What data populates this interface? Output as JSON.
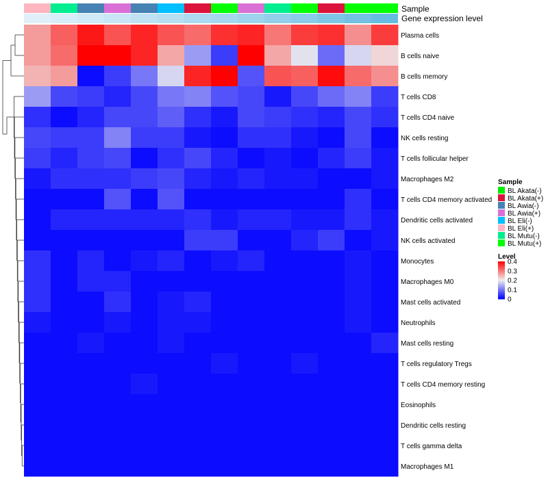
{
  "chart_data": {
    "type": "heatmap",
    "annotation_labels": {
      "sample": "Sample",
      "level_bar": "Gene expression level"
    },
    "rows": [
      "Plasma cells",
      "B cells naive",
      "B cells memory",
      "T cells CD8",
      "T cells CD4 naive",
      "NK cells resting",
      "T cells follicular helper",
      "Macrophages M2",
      "T cells CD4 memory activated",
      "Dendritic cells activated",
      "NK cells activated",
      "Monocytes",
      "Macrophages M0",
      "Mast cells activated",
      "Neutrophils",
      "Mast cells resting",
      "T cells regulatory  Tregs",
      "T cells CD4 memory resting",
      "Eosinophils",
      "Dendritic cells resting",
      "T cells gamma delta",
      "Macrophages M1"
    ],
    "columns": [
      "BL Eli(+)",
      "BL Mutu(-)",
      "BL Awia(-)",
      "BL Awia(+)",
      "BL Awia(-)",
      "BL Eli(-)",
      "BL Akata(+)",
      "BL Mutu(+)",
      "BL Awia(+)",
      "BL Mutu(-)",
      "BL Mutu(+)",
      "BL Akata(+)",
      "BL Mutu(+)",
      "BL Mutu(+)"
    ],
    "values": [
      [
        0.27,
        0.32,
        0.38,
        0.33,
        0.37,
        0.33,
        0.31,
        0.36,
        0.37,
        0.3,
        0.35,
        0.36,
        0.28,
        0.35
      ],
      [
        0.27,
        0.31,
        0.4,
        0.4,
        0.37,
        0.26,
        0.13,
        0.05,
        0.4,
        0.26,
        0.19,
        0.09,
        0.18,
        0.22
      ],
      [
        0.25,
        0.27,
        0.01,
        0.05,
        0.1,
        0.18,
        0.37,
        0.4,
        0.07,
        0.33,
        0.32,
        0.39,
        0.31,
        0.28
      ],
      [
        0.13,
        0.06,
        0.05,
        0.03,
        0.06,
        0.1,
        0.11,
        0.07,
        0.06,
        0.02,
        0.06,
        0.09,
        0.11,
        0.05
      ],
      [
        0.04,
        0.01,
        0.03,
        0.06,
        0.06,
        0.08,
        0.04,
        0.02,
        0.06,
        0.05,
        0.04,
        0.03,
        0.06,
        0.04
      ],
      [
        0.06,
        0.05,
        0.05,
        0.11,
        0.05,
        0.05,
        0.02,
        0.01,
        0.04,
        0.04,
        0.02,
        0.01,
        0.06,
        0.01
      ],
      [
        0.05,
        0.03,
        0.05,
        0.06,
        0.01,
        0.04,
        0.06,
        0.03,
        0.01,
        0.02,
        0.01,
        0.03,
        0.05,
        0.02
      ],
      [
        0.02,
        0.04,
        0.04,
        0.04,
        0.05,
        0.06,
        0.03,
        0.02,
        0.03,
        0.02,
        0.02,
        0.01,
        0.01,
        0.02
      ],
      [
        0.01,
        0.01,
        0.01,
        0.07,
        0.01,
        0.07,
        0.01,
        0.01,
        0.01,
        0.01,
        0.01,
        0.01,
        0.04,
        0.01
      ],
      [
        0.01,
        0.03,
        0.03,
        0.03,
        0.03,
        0.03,
        0.04,
        0.02,
        0.03,
        0.03,
        0.02,
        0.02,
        0.04,
        0.02
      ],
      [
        0.01,
        0.01,
        0.01,
        0.01,
        0.01,
        0.01,
        0.05,
        0.05,
        0.01,
        0.01,
        0.03,
        0.05,
        0.01,
        0.02
      ],
      [
        0.04,
        0.01,
        0.03,
        0.01,
        0.02,
        0.03,
        0.01,
        0.02,
        0.03,
        0.01,
        0.01,
        0.01,
        0.02,
        0.01
      ],
      [
        0.04,
        0.01,
        0.03,
        0.03,
        0.01,
        0.01,
        0.01,
        0.01,
        0.01,
        0.01,
        0.01,
        0.01,
        0.02,
        0.01
      ],
      [
        0.04,
        0.01,
        0.01,
        0.04,
        0.01,
        0.02,
        0.03,
        0.01,
        0.01,
        0.01,
        0.01,
        0.01,
        0.02,
        0.01
      ],
      [
        0.02,
        0.01,
        0.01,
        0.02,
        0.01,
        0.02,
        0.02,
        0.01,
        0.01,
        0.01,
        0.01,
        0.01,
        0.02,
        0.01
      ],
      [
        0.01,
        0.01,
        0.02,
        0.01,
        0.01,
        0.02,
        0.01,
        0.01,
        0.01,
        0.01,
        0.01,
        0.01,
        0.01,
        0.03
      ],
      [
        0.01,
        0.01,
        0.01,
        0.01,
        0.01,
        0.01,
        0.01,
        0.02,
        0.01,
        0.01,
        0.02,
        0.01,
        0.01,
        0.01
      ],
      [
        0.01,
        0.01,
        0.01,
        0.01,
        0.02,
        0.01,
        0.01,
        0.01,
        0.01,
        0.01,
        0.01,
        0.01,
        0.01,
        0.01
      ],
      [
        0.01,
        0.01,
        0.01,
        0.01,
        0.01,
        0.01,
        0.01,
        0.01,
        0.01,
        0.01,
        0.01,
        0.01,
        0.01,
        0.01
      ],
      [
        0.01,
        0.01,
        0.01,
        0.01,
        0.01,
        0.01,
        0.01,
        0.01,
        0.01,
        0.01,
        0.01,
        0.01,
        0.01,
        0.01
      ],
      [
        0.01,
        0.01,
        0.01,
        0.01,
        0.01,
        0.01,
        0.01,
        0.01,
        0.01,
        0.01,
        0.01,
        0.01,
        0.01,
        0.01
      ],
      [
        0.01,
        0.01,
        0.01,
        0.01,
        0.01,
        0.01,
        0.01,
        0.01,
        0.01,
        0.01,
        0.01,
        0.01,
        0.01,
        0.01
      ]
    ],
    "color_scale": {
      "min": 0,
      "max": 0.4,
      "low": "#0000FF",
      "mid": "#EEEEEE",
      "high": "#FF0000",
      "mid_value": 0.2
    },
    "sample_colors": {
      "BL Akata(-)": "#00EE00",
      "BL Akata(+)": "#DC143C",
      "BL Awia(-)": "#4682B4",
      "BL Awia(+)": "#DA70D6",
      "BL Eli(-)": "#00BFFF",
      "BL Eli(+)": "#FFB6C1",
      "BL Mutu(-)": "#00EE90",
      "BL Mutu(+)": "#00FF00"
    },
    "level_bar_colors": [
      "#E0F0FA",
      "#D7EDF8",
      "#CFE9F6",
      "#C8E6F5",
      "#BFE2F3",
      "#B6DEF1",
      "#ADDAF0",
      "#A6D7EE",
      "#9DD3EC",
      "#93CFEA",
      "#89CBE8",
      "#7EC6E6",
      "#72C1E4",
      "#66BCE2"
    ],
    "legend_sample": {
      "title": "Sample",
      "entries": [
        "BL Akata(-)",
        "BL Akata(+)",
        "BL Awia(-)",
        "BL Awia(+)",
        "BL Eli(-)",
        "BL Eli(+)",
        "BL Mutu(-)",
        "BL Mutu(+)"
      ]
    },
    "legend_level": {
      "title": "Level",
      "ticks": [
        "0.4",
        "0.3",
        "0.2",
        "0.1",
        "0"
      ],
      "tick_values": [
        0.4,
        0.3,
        0.2,
        0.1,
        0
      ]
    }
  }
}
